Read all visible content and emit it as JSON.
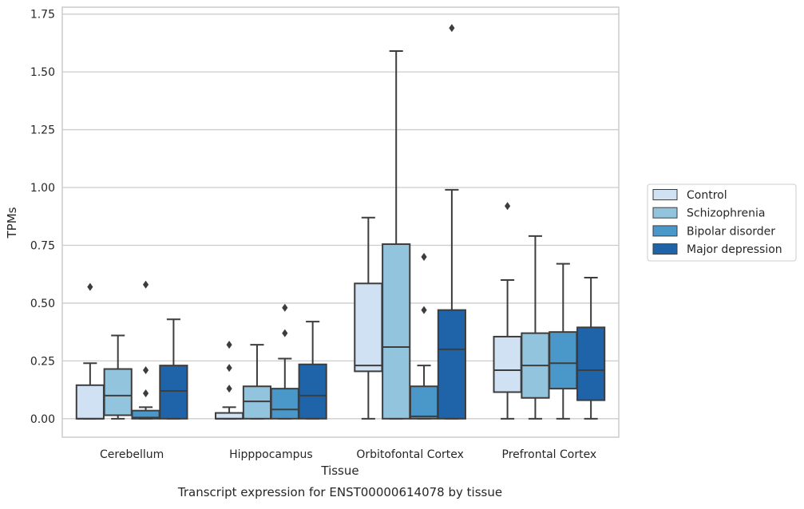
{
  "chart_data": {
    "type": "box",
    "title": "",
    "caption": "Transcript expression for ENST00000614078 by tissue",
    "xlabel": "Tissue",
    "ylabel": "TPMs",
    "ylim": [
      -0.08,
      1.78
    ],
    "yticks": [
      0.0,
      0.25,
      0.5,
      0.75,
      1.0,
      1.25,
      1.5,
      1.75
    ],
    "ytick_labels": [
      "0.00",
      "0.25",
      "0.50",
      "0.75",
      "1.00",
      "1.25",
      "1.50",
      "1.75"
    ],
    "grid": "horizontal",
    "legend_position": "right",
    "categories": [
      "Cerebellum",
      "Hipppocampus",
      "Orbitofontal Cortex",
      "Prefrontal Cortex"
    ],
    "series": [
      {
        "name": "Control",
        "color": "#cfe1f2",
        "boxes": [
          {
            "whislo": 0.0,
            "q1": 0.0,
            "med": 0.0,
            "q3": 0.145,
            "whishi": 0.24,
            "fliers": [
              0.57
            ]
          },
          {
            "whislo": 0.0,
            "q1": 0.0,
            "med": 0.0,
            "q3": 0.025,
            "whishi": 0.05,
            "fliers": [
              0.13,
              0.22,
              0.32
            ]
          },
          {
            "whislo": 0.0,
            "q1": 0.205,
            "med": 0.23,
            "q3": 0.585,
            "whishi": 0.87,
            "fliers": []
          },
          {
            "whislo": 0.0,
            "q1": 0.115,
            "med": 0.21,
            "q3": 0.355,
            "whishi": 0.6,
            "fliers": [
              0.92
            ]
          }
        ]
      },
      {
        "name": "Schizophrenia",
        "color": "#93c4de",
        "boxes": [
          {
            "whislo": 0.0,
            "q1": 0.015,
            "med": 0.1,
            "q3": 0.215,
            "whishi": 0.36,
            "fliers": []
          },
          {
            "whislo": 0.0,
            "q1": 0.0,
            "med": 0.075,
            "q3": 0.14,
            "whishi": 0.32,
            "fliers": []
          },
          {
            "whislo": 0.0,
            "q1": 0.0,
            "med": 0.31,
            "q3": 0.755,
            "whishi": 1.59,
            "fliers": []
          },
          {
            "whislo": 0.0,
            "q1": 0.09,
            "med": 0.23,
            "q3": 0.37,
            "whishi": 0.79,
            "fliers": []
          }
        ]
      },
      {
        "name": "Bipolar disorder",
        "color": "#4a98c9",
        "boxes": [
          {
            "whislo": 0.0,
            "q1": 0.0,
            "med": 0.005,
            "q3": 0.035,
            "whishi": 0.05,
            "fliers": [
              0.11,
              0.21,
              0.58
            ]
          },
          {
            "whislo": 0.0,
            "q1": 0.0,
            "med": 0.04,
            "q3": 0.13,
            "whishi": 0.26,
            "fliers": [
              0.37,
              0.48
            ]
          },
          {
            "whislo": 0.0,
            "q1": 0.0,
            "med": 0.01,
            "q3": 0.14,
            "whishi": 0.23,
            "fliers": [
              0.47,
              0.7
            ]
          },
          {
            "whislo": 0.0,
            "q1": 0.13,
            "med": 0.24,
            "q3": 0.375,
            "whishi": 0.67,
            "fliers": []
          }
        ]
      },
      {
        "name": "Major depression",
        "color": "#1f63a8",
        "boxes": [
          {
            "whislo": 0.0,
            "q1": 0.0,
            "med": 0.12,
            "q3": 0.23,
            "whishi": 0.43,
            "fliers": []
          },
          {
            "whislo": 0.0,
            "q1": 0.0,
            "med": 0.1,
            "q3": 0.235,
            "whishi": 0.42,
            "fliers": []
          },
          {
            "whislo": 0.0,
            "q1": 0.0,
            "med": 0.3,
            "q3": 0.47,
            "whishi": 0.99,
            "fliers": [
              1.69
            ]
          },
          {
            "whislo": 0.0,
            "q1": 0.08,
            "med": 0.21,
            "q3": 0.395,
            "whishi": 0.61,
            "fliers": []
          }
        ]
      }
    ]
  }
}
